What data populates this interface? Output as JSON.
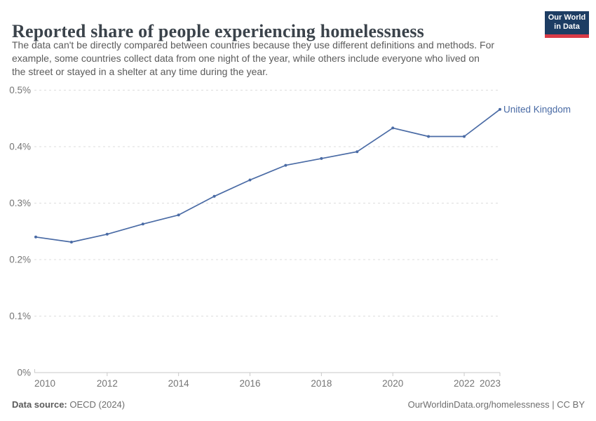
{
  "header": {
    "title": "Reported share of people experiencing homelessness",
    "subtitle_lines": [
      "The data can't be directly compared between countries because they use different definitions and methods. For",
      "example, some countries collect data from one night of the year, while others include everyone who lived on",
      "the street or stayed in a shelter at any time during the year."
    ],
    "logo": {
      "line1": "Our World",
      "line2": "in Data",
      "bg_color": "#1d3d63",
      "accent_color": "#d93a46"
    }
  },
  "chart_data": {
    "type": "line",
    "title": "Reported share of people experiencing homelessness",
    "xlabel": "",
    "ylabel": "",
    "unit": "%",
    "ylim": [
      0,
      0.5
    ],
    "grid": "horizontal-dashed",
    "legend_position": "end-of-line-label",
    "x": [
      2010,
      2011,
      2012,
      2013,
      2014,
      2015,
      2016,
      2017,
      2018,
      2019,
      2020,
      2021,
      2022,
      2023
    ],
    "series": [
      {
        "name": "United Kingdom",
        "color": "#4a6ba5",
        "values": [
          0.24,
          0.231,
          0.245,
          0.263,
          0.279,
          0.312,
          0.341,
          0.367,
          0.379,
          0.391,
          0.433,
          0.418,
          0.418,
          0.466
        ]
      }
    ],
    "yticks": [
      {
        "value": 0,
        "label": "0%"
      },
      {
        "value": 0.1,
        "label": "0.1%"
      },
      {
        "value": 0.2,
        "label": "0.2%"
      },
      {
        "value": 0.3,
        "label": "0.3%"
      },
      {
        "value": 0.4,
        "label": "0.4%"
      },
      {
        "value": 0.5,
        "label": "0.5%"
      }
    ],
    "xticks": [
      {
        "value": 2010,
        "label": "2010"
      },
      {
        "value": 2012,
        "label": "2012"
      },
      {
        "value": 2014,
        "label": "2014"
      },
      {
        "value": 2016,
        "label": "2016"
      },
      {
        "value": 2018,
        "label": "2018"
      },
      {
        "value": 2020,
        "label": "2020"
      },
      {
        "value": 2022,
        "label": "2022"
      },
      {
        "value": 2023,
        "label": "2023"
      }
    ],
    "grid_color": "#dcdcdc",
    "axis_color": "#c9c9c9",
    "tick_label_color": "#757575"
  },
  "footer": {
    "source_label": "Data source:",
    "source_value": " OECD (2024)",
    "right_text": "OurWorldinData.org/homelessness | CC BY"
  }
}
